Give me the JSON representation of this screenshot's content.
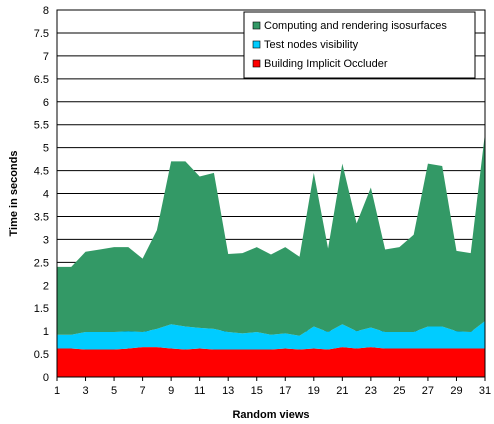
{
  "chart_data": {
    "type": "area",
    "stacked": true,
    "xlabel": "Random views",
    "ylabel": "Time in seconds",
    "xlim": [
      1,
      31
    ],
    "ylim": [
      0,
      8
    ],
    "x_ticks": [
      "1",
      "3",
      "5",
      "7",
      "9",
      "11",
      "13",
      "15",
      "17",
      "19",
      "21",
      "23",
      "25",
      "27",
      "29",
      "31"
    ],
    "y_ticks": [
      "0",
      "0.5",
      "1",
      "1.5",
      "2",
      "2.5",
      "3",
      "3.5",
      "4",
      "4.5",
      "5",
      "5.5",
      "6",
      "6.5",
      "7",
      "7.5",
      "8"
    ],
    "grid": true,
    "legend_position": "top-right",
    "x": [
      1,
      2,
      3,
      4,
      5,
      6,
      7,
      8,
      9,
      10,
      11,
      12,
      13,
      14,
      15,
      16,
      17,
      18,
      19,
      20,
      21,
      22,
      23,
      24,
      25,
      26,
      27,
      28,
      29,
      30,
      31
    ],
    "series": [
      {
        "name": "Building Implicit Occluder",
        "color": "#ff0000",
        "values": [
          0.62,
          0.62,
          0.6,
          0.6,
          0.6,
          0.62,
          0.65,
          0.65,
          0.62,
          0.6,
          0.62,
          0.6,
          0.6,
          0.6,
          0.6,
          0.6,
          0.62,
          0.6,
          0.62,
          0.6,
          0.65,
          0.62,
          0.65,
          0.62,
          0.62,
          0.62,
          0.62,
          0.62,
          0.62,
          0.62,
          0.62
        ]
      },
      {
        "name": "Test nodes visibility",
        "color": "#00ccff",
        "values": [
          0.3,
          0.3,
          0.38,
          0.38,
          0.38,
          0.38,
          0.33,
          0.4,
          0.53,
          0.5,
          0.45,
          0.45,
          0.38,
          0.35,
          0.38,
          0.32,
          0.33,
          0.3,
          0.48,
          0.38,
          0.5,
          0.38,
          0.43,
          0.36,
          0.36,
          0.36,
          0.48,
          0.48,
          0.38,
          0.36,
          0.6
        ]
      },
      {
        "name": "Computing and rendering isosurfaces",
        "color": "#339966",
        "values": [
          1.48,
          1.48,
          1.75,
          1.8,
          1.85,
          1.83,
          1.6,
          2.15,
          3.55,
          3.6,
          3.3,
          3.4,
          1.7,
          1.75,
          1.85,
          1.75,
          1.88,
          1.72,
          3.35,
          1.82,
          3.5,
          2.35,
          3.05,
          1.8,
          1.85,
          2.12,
          3.55,
          3.5,
          1.75,
          1.72,
          4.1
        ]
      }
    ]
  }
}
